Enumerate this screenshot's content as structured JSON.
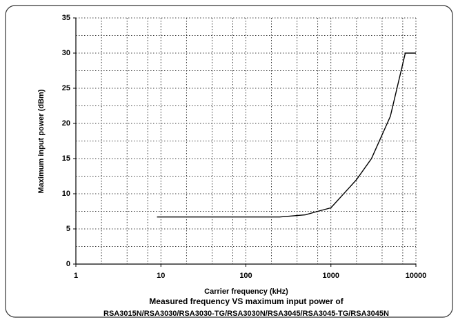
{
  "chart_data": {
    "type": "line",
    "x_label": "Carrier frequency (kHz)",
    "y_label": "Maximum input power (dBm)",
    "caption": "Measured frequency VS maximum input power of",
    "models": "RSA3015N/RSA3030/RSA3030-TG/RSA3030N/RSA3045/RSA3045-TG/RSA3045N",
    "x": [
      9,
      250,
      500,
      700,
      1000,
      2000,
      3000,
      5000,
      7500,
      10000
    ],
    "series": [
      {
        "color": "#000000",
        "values": [
          6.7,
          6.7,
          7.0,
          7.5,
          8.0,
          12,
          15,
          21,
          30,
          30
        ]
      }
    ],
    "x_log": true,
    "xlim": [
      1,
      10000
    ],
    "xticks": [
      1,
      10,
      100,
      1000,
      10000
    ],
    "x_minor_grid": [
      2,
      4,
      7,
      20,
      40,
      70,
      200,
      400,
      700,
      2000,
      4000,
      7000
    ],
    "ylim": [
      0,
      35
    ],
    "yticks": [
      0,
      5,
      10,
      15,
      20,
      25,
      30,
      35
    ],
    "y_minor_grid": [
      2.5,
      7.5,
      12.5,
      17.5,
      22.5,
      27.5,
      32.5
    ],
    "grid": true
  }
}
